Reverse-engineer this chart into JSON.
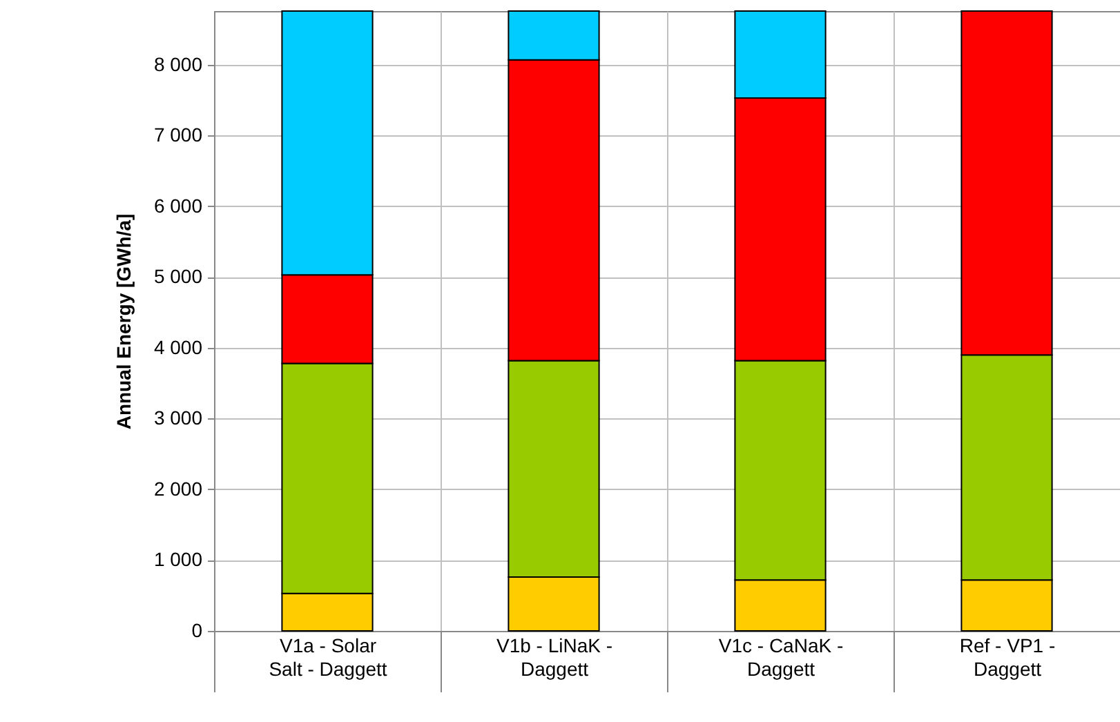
{
  "chart_data": {
    "type": "bar",
    "stacked": true,
    "ylabel": "Annual Energy [GWh/a]",
    "categories": [
      "V1a - Solar Salt - Daggett",
      "V1b - LiNaK - Daggett",
      "V1c - CaNaK - Daggett",
      "Ref - VP1 - Daggett"
    ],
    "series": [
      {
        "color": "#ffcc00",
        "values": [
          530,
          760,
          720,
          720
        ]
      },
      {
        "color": "#99cc00",
        "values": [
          3250,
          3060,
          3100,
          3180
        ]
      },
      {
        "color": "#ff0000",
        "values": [
          1250,
          4250,
          3710,
          4860
        ]
      },
      {
        "color": "#00ccff",
        "values": [
          3730,
          690,
          1230,
          null
        ]
      }
    ],
    "ylim": [
      0,
      8760
    ],
    "yticks": [
      0,
      {
        "value": 1000,
        "label": "1 000"
      },
      {
        "value": 2000,
        "label": "2 000"
      },
      {
        "value": 3000,
        "label": "3 000"
      },
      {
        "value": 4000,
        "label": "4 000"
      },
      {
        "value": 5000,
        "label": "5 000"
      },
      {
        "value": 6000,
        "label": "6 000"
      },
      {
        "value": 7000,
        "label": "7 000"
      },
      {
        "value": 8000,
        "label": "8 000"
      }
    ],
    "grid": true
  }
}
